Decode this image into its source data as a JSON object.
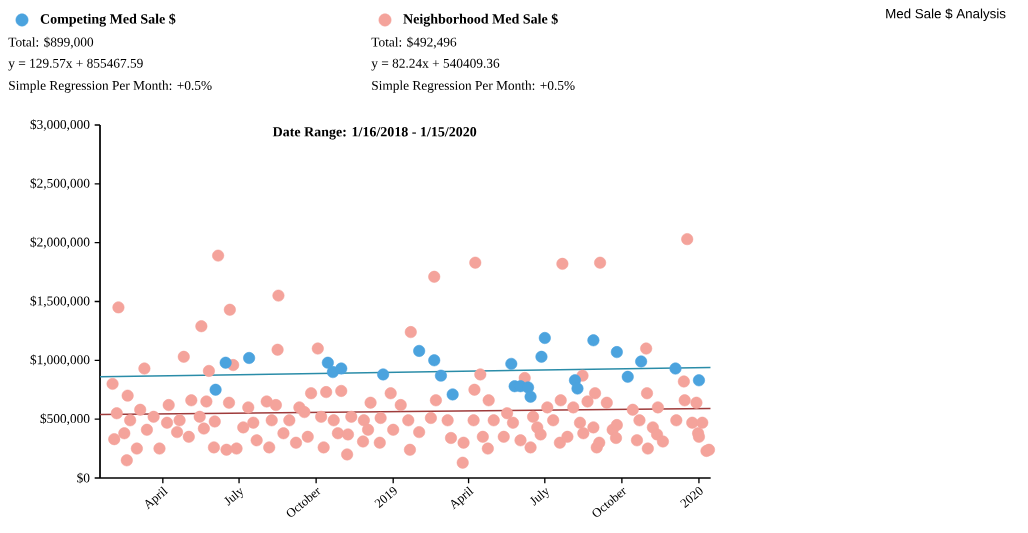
{
  "chart_data": {
    "type": "scatter",
    "title": "Med Sale $ Analysis",
    "subtitle": "Date Range: 1/16/2018 - 1/15/2020",
    "annotations": [
      "Total: $899,000",
      "y = 129.57x + 855467.59",
      "Simple Regression Per Month: +0.5%",
      "Total: $492,496",
      "y = 82.24x + 540409.36",
      "Simple Regression Per Month: +0.5%"
    ],
    "xlim": [
      "2018-01-16",
      "2020-01-15"
    ],
    "xticks": [
      {
        "value": "2018-04-01",
        "label": "April"
      },
      {
        "value": "2018-07-01",
        "label": "July"
      },
      {
        "value": "2018-10-01",
        "label": "October"
      },
      {
        "value": "2019-01-01",
        "label": "2019"
      },
      {
        "value": "2019-04-01",
        "label": "April"
      },
      {
        "value": "2019-07-01",
        "label": "July"
      },
      {
        "value": "2019-10-01",
        "label": "October"
      },
      {
        "value": "2020-01-01",
        "label": "2020"
      }
    ],
    "ylim": [
      0,
      3000000
    ],
    "yticks": [
      {
        "value": 0,
        "label": "$0"
      },
      {
        "value": 500000,
        "label": "$500,000"
      },
      {
        "value": 1000000,
        "label": "$1,000,000"
      },
      {
        "value": 1500000,
        "label": "$1,500,000"
      },
      {
        "value": 2000000,
        "label": "$2,000,000"
      },
      {
        "value": 2500000,
        "label": "$2,500,000"
      },
      {
        "value": 3000000,
        "label": "$3,000,000"
      }
    ],
    "legend": "top left",
    "series": [
      {
        "name": "Competing Med Sale $",
        "marker": "circle",
        "color": "#4ba3de",
        "x": [
          "2018-06-03",
          "2018-06-15",
          "2018-07-13",
          "2018-10-15",
          "2018-10-21",
          "2018-10-31",
          "2018-12-20",
          "2019-02-01",
          "2019-02-19",
          "2019-02-27",
          "2019-03-13",
          "2019-05-22",
          "2019-05-26",
          "2019-06-02",
          "2019-06-11",
          "2019-06-14",
          "2019-06-27",
          "2019-07-01",
          "2019-08-06",
          "2019-08-09",
          "2019-08-28",
          "2019-09-25",
          "2019-10-08",
          "2019-10-24",
          "2019-12-04",
          "2020-01-01"
        ],
        "values": [
          750000,
          980000,
          1020000,
          980000,
          900000,
          930000,
          880000,
          1080000,
          1000000,
          870000,
          710000,
          970000,
          780000,
          780000,
          770000,
          690000,
          1030000,
          1190000,
          830000,
          760000,
          1170000,
          1070000,
          860000,
          990000,
          930000,
          830000
        ]
      },
      {
        "name": "Neighborhood Med Sale $",
        "marker": "circle",
        "color": "#f4a39b",
        "x": [
          "2018-01-31",
          "2018-02-02",
          "2018-02-05",
          "2018-02-07",
          "2018-02-14",
          "2018-02-17",
          "2018-02-18",
          "2018-02-21",
          "2018-03-01",
          "2018-03-05",
          "2018-03-10",
          "2018-03-13",
          "2018-03-21",
          "2018-03-28",
          "2018-04-06",
          "2018-04-08",
          "2018-04-18",
          "2018-04-21",
          "2018-04-26",
          "2018-05-02",
          "2018-05-05",
          "2018-05-15",
          "2018-05-17",
          "2018-05-20",
          "2018-05-23",
          "2018-05-26",
          "2018-06-01",
          "2018-06-02",
          "2018-06-06",
          "2018-06-16",
          "2018-06-19",
          "2018-06-20",
          "2018-06-24",
          "2018-06-28",
          "2018-07-06",
          "2018-07-12",
          "2018-07-18",
          "2018-07-22",
          "2018-08-03",
          "2018-08-06",
          "2018-08-09",
          "2018-08-14",
          "2018-08-16",
          "2018-08-17",
          "2018-08-23",
          "2018-08-30",
          "2018-09-07",
          "2018-09-11",
          "2018-09-17",
          "2018-09-21",
          "2018-09-25",
          "2018-10-03",
          "2018-10-07",
          "2018-10-10",
          "2018-10-13",
          "2018-10-22",
          "2018-10-27",
          "2018-10-31",
          "2018-11-07",
          "2018-11-08",
          "2018-11-12",
          "2018-11-26",
          "2018-11-27",
          "2018-12-02",
          "2018-12-05",
          "2018-12-16",
          "2018-12-17",
          "2018-12-29",
          "2019-01-01",
          "2019-01-10",
          "2019-01-19",
          "2019-01-21",
          "2019-01-22",
          "2019-02-01",
          "2019-02-15",
          "2019-02-19",
          "2019-02-21",
          "2019-03-07",
          "2019-03-11",
          "2019-03-25",
          "2019-03-26",
          "2019-04-07",
          "2019-04-08",
          "2019-04-09",
          "2019-04-15",
          "2019-04-18",
          "2019-04-24",
          "2019-04-25",
          "2019-05-01",
          "2019-05-13",
          "2019-05-17",
          "2019-05-24",
          "2019-06-02",
          "2019-06-07",
          "2019-06-14",
          "2019-06-17",
          "2019-06-22",
          "2019-06-26",
          "2019-07-04",
          "2019-07-11",
          "2019-07-19",
          "2019-07-20",
          "2019-07-22",
          "2019-07-28",
          "2019-08-04",
          "2019-08-12",
          "2019-08-15",
          "2019-08-16",
          "2019-08-21",
          "2019-08-28",
          "2019-08-30",
          "2019-09-01",
          "2019-09-04",
          "2019-09-05",
          "2019-09-13",
          "2019-09-20",
          "2019-09-24",
          "2019-09-25",
          "2019-10-14",
          "2019-10-19",
          "2019-10-22",
          "2019-10-30",
          "2019-10-31",
          "2019-11-01",
          "2019-11-07",
          "2019-11-12",
          "2019-11-13",
          "2019-11-19",
          "2019-12-05",
          "2019-12-14",
          "2019-12-15",
          "2019-12-18",
          "2019-12-24",
          "2019-12-29",
          "2019-12-31",
          "2020-01-01",
          "2020-01-05",
          "2020-01-10",
          "2020-01-13"
        ],
        "values": [
          800000,
          330000,
          550000,
          1450000,
          380000,
          150000,
          700000,
          490000,
          250000,
          580000,
          930000,
          410000,
          520000,
          250000,
          470000,
          620000,
          390000,
          490000,
          1030000,
          350000,
          660000,
          520000,
          1290000,
          420000,
          650000,
          910000,
          260000,
          480000,
          1890000,
          240000,
          640000,
          1430000,
          960000,
          250000,
          430000,
          600000,
          470000,
          320000,
          650000,
          260000,
          490000,
          620000,
          1090000,
          1550000,
          380000,
          490000,
          300000,
          600000,
          560000,
          350000,
          720000,
          1100000,
          520000,
          260000,
          730000,
          490000,
          380000,
          740000,
          200000,
          370000,
          520000,
          310000,
          490000,
          410000,
          640000,
          300000,
          510000,
          720000,
          410000,
          620000,
          490000,
          240000,
          1240000,
          390000,
          510000,
          1710000,
          660000,
          490000,
          340000,
          130000,
          300000,
          490000,
          750000,
          1830000,
          880000,
          350000,
          250000,
          660000,
          490000,
          350000,
          550000,
          470000,
          320000,
          850000,
          260000,
          520000,
          430000,
          370000,
          600000,
          490000,
          300000,
          660000,
          1820000,
          350000,
          600000,
          470000,
          870000,
          380000,
          650000,
          430000,
          720000,
          260000,
          300000,
          1830000,
          640000,
          410000,
          340000,
          450000,
          580000,
          320000,
          490000,
          1100000,
          720000,
          250000,
          430000,
          370000,
          600000,
          310000,
          490000,
          820000,
          660000,
          2030000,
          470000,
          640000,
          380000,
          350000,
          470000,
          230000,
          240000
        ]
      },
      {
        "type": "line",
        "marker": "none",
        "color": "#2a8ca8",
        "x": [
          "2018-01-16",
          "2020-01-15"
        ],
        "values": [
          860000,
          940000
        ]
      },
      {
        "type": "line",
        "marker": "none",
        "color": "#9e3b3b",
        "x": [
          "2018-01-16",
          "2020-01-15"
        ],
        "values": [
          540000,
          590000
        ]
      }
    ]
  }
}
